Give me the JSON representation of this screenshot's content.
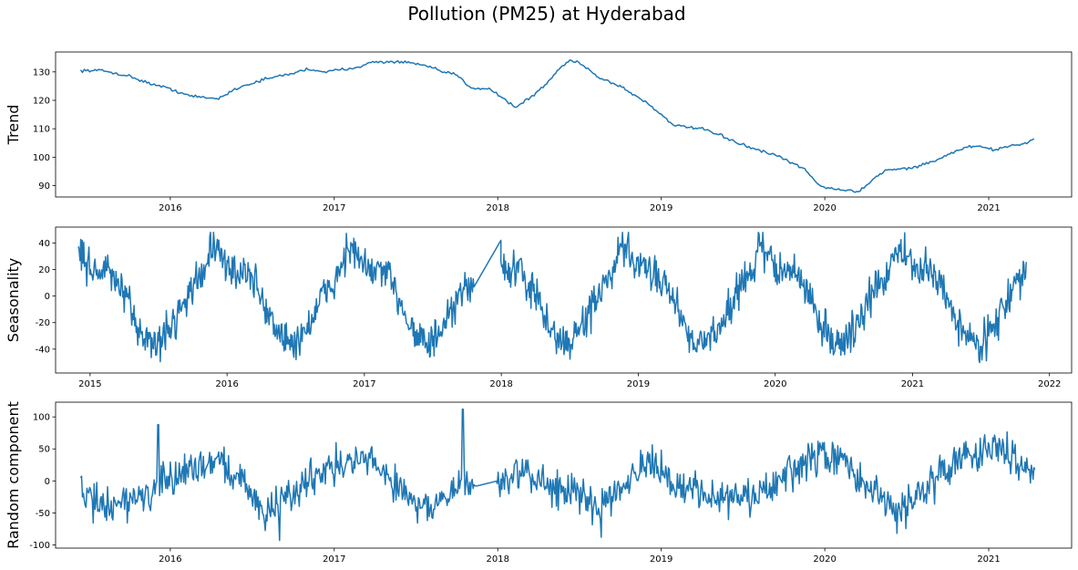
{
  "figure": {
    "title": "Pollution (PM25) at Hyderabad"
  },
  "colors": {
    "line": "#1f77b4",
    "axis": "#000000",
    "background": "#ffffff"
  },
  "chart_data": [
    {
      "type": "line",
      "ylabel": "Trend",
      "xlabel": "",
      "x_ticks": [
        "2016",
        "2017",
        "2018",
        "2019",
        "2020",
        "2021"
      ],
      "y_ticks": [
        90,
        100,
        110,
        120,
        130
      ],
      "xlim": [
        "2015-04-20",
        "2021-07-05"
      ],
      "ylim": [
        86,
        137
      ],
      "grid": false,
      "series": [
        {
          "points": [
            [
              "2015-06-15",
              130.5
            ],
            [
              "2015-08-01",
              130.5
            ],
            [
              "2015-10-01",
              128.5
            ],
            [
              "2015-11-15",
              126.0
            ],
            [
              "2016-01-01",
              124.0
            ],
            [
              "2016-02-15",
              121.5
            ],
            [
              "2016-04-15",
              120.5
            ],
            [
              "2016-06-01",
              124.5
            ],
            [
              "2016-08-01",
              127.5
            ],
            [
              "2016-10-01",
              129.5
            ],
            [
              "2016-11-01",
              131.0
            ],
            [
              "2016-12-15",
              130.0
            ],
            [
              "2017-02-15",
              131.5
            ],
            [
              "2017-04-01",
              133.5
            ],
            [
              "2017-06-01",
              133.5
            ],
            [
              "2017-07-15",
              132.5
            ],
            [
              "2017-09-01",
              130.0
            ],
            [
              "2017-10-01",
              129.0
            ],
            [
              "2017-11-01",
              124.5
            ],
            [
              "2017-12-15",
              124.0
            ],
            [
              "2018-01-15",
              120.5
            ],
            [
              "2018-02-10",
              117.5
            ],
            [
              "2018-03-15",
              121.0
            ],
            [
              "2018-04-15",
              125.0
            ],
            [
              "2018-05-15",
              130.5
            ],
            [
              "2018-06-10",
              134.0
            ],
            [
              "2018-07-01",
              133.5
            ],
            [
              "2018-08-15",
              128.0
            ],
            [
              "2018-10-01",
              125.0
            ],
            [
              "2018-12-01",
              119.0
            ],
            [
              "2019-02-01",
              111.0
            ],
            [
              "2019-04-01",
              110.0
            ],
            [
              "2019-05-15",
              107.5
            ],
            [
              "2019-07-15",
              103.5
            ],
            [
              "2019-09-15",
              100.5
            ],
            [
              "2019-11-15",
              96.0
            ],
            [
              "2019-12-20",
              90.0
            ],
            [
              "2020-02-01",
              88.5
            ],
            [
              "2020-03-20",
              88.0
            ],
            [
              "2020-04-15",
              92.0
            ],
            [
              "2020-05-15",
              95.5
            ],
            [
              "2020-07-01",
              96.0
            ],
            [
              "2020-08-01",
              97.0
            ],
            [
              "2020-09-15",
              99.5
            ],
            [
              "2020-11-01",
              103.0
            ],
            [
              "2020-12-01",
              104.0
            ],
            [
              "2021-01-15",
              102.5
            ],
            [
              "2021-02-15",
              104.0
            ],
            [
              "2021-03-15",
              104.5
            ],
            [
              "2021-04-15",
              106.5
            ]
          ]
        }
      ]
    },
    {
      "type": "line",
      "ylabel": "Seasonality",
      "xlabel": "",
      "x_ticks": [
        "2015",
        "2016",
        "2017",
        "2018",
        "2019",
        "2020",
        "2021",
        "2022"
      ],
      "y_ticks": [
        -40,
        -20,
        0,
        20,
        40
      ],
      "xlim": [
        "2014-10-01",
        "2022-03-01"
      ],
      "ylim": [
        -58,
        52
      ],
      "grid": false,
      "series": [
        {
          "seasonal_profile": [
            [
              0,
              18
            ],
            [
              0.04,
              20
            ],
            [
              0.08,
              14
            ],
            [
              0.12,
              10
            ],
            [
              0.16,
              2
            ],
            [
              0.2,
              -8
            ],
            [
              0.25,
              -20
            ],
            [
              0.3,
              -28
            ],
            [
              0.35,
              -33
            ],
            [
              0.4,
              -38
            ],
            [
              0.45,
              -30
            ],
            [
              0.5,
              -25
            ],
            [
              0.55,
              -15
            ],
            [
              0.6,
              -5
            ],
            [
              0.65,
              5
            ],
            [
              0.7,
              10
            ],
            [
              0.75,
              20
            ],
            [
              0.8,
              38
            ],
            [
              0.85,
              32
            ],
            [
              0.9,
              24
            ],
            [
              0.95,
              20
            ],
            [
              1.0,
              18
            ]
          ],
          "start": "2014-12-01",
          "end": "2021-11-01",
          "gap": [
            "2017-10-20",
            "2017-12-31"
          ]
        }
      ]
    },
    {
      "type": "line",
      "ylabel": "Random component",
      "xlabel": "",
      "x_ticks": [
        "2016",
        "2017",
        "2018",
        "2019",
        "2020",
        "2021"
      ],
      "y_ticks": [
        -100,
        -50,
        0,
        50,
        100
      ],
      "xlim": [
        "2015-04-20",
        "2021-07-05"
      ],
      "ylim": [
        -105,
        123
      ],
      "grid": false,
      "series": [
        {
          "baseline": [
            [
              "2015-06-15",
              -15
            ],
            [
              "2015-08-01",
              -40
            ],
            [
              "2015-10-01",
              -30
            ],
            [
              "2015-12-01",
              -15
            ],
            [
              "2016-02-01",
              15
            ],
            [
              "2016-04-15",
              35
            ],
            [
              "2016-06-15",
              -5
            ],
            [
              "2016-08-01",
              -50
            ],
            [
              "2016-10-01",
              -20
            ],
            [
              "2016-12-01",
              20
            ],
            [
              "2017-02-15",
              30
            ],
            [
              "2017-04-01",
              30
            ],
            [
              "2017-06-01",
              -15
            ],
            [
              "2017-08-01",
              -45
            ],
            [
              "2017-10-20",
              -5
            ],
            [
              "2017-11-15",
              -8
            ],
            [
              "2017-12-31",
              0
            ],
            [
              "2018-02-15",
              10
            ],
            [
              "2018-04-15",
              0
            ],
            [
              "2018-06-15",
              -20
            ],
            [
              "2018-08-15",
              -40
            ],
            [
              "2018-10-15",
              5
            ],
            [
              "2018-12-01",
              25
            ],
            [
              "2019-02-01",
              -5
            ],
            [
              "2019-04-15",
              -20
            ],
            [
              "2019-06-15",
              -30
            ],
            [
              "2019-08-15",
              -20
            ],
            [
              "2019-10-15",
              10
            ],
            [
              "2019-12-15",
              40
            ],
            [
              "2020-02-15",
              30
            ],
            [
              "2020-04-15",
              -20
            ],
            [
              "2020-06-15",
              -45
            ],
            [
              "2020-08-15",
              -10
            ],
            [
              "2020-10-15",
              30
            ],
            [
              "2020-12-15",
              50
            ],
            [
              "2021-02-15",
              45
            ],
            [
              "2021-04-15",
              15
            ]
          ],
          "spikes": [
            [
              "2015-12-05",
              88
            ],
            [
              "2017-10-15",
              112
            ],
            [
              "2018-08-20",
              -88
            ],
            [
              "2016-09-01",
              -93
            ],
            [
              "2020-06-10",
              -82
            ]
          ]
        }
      ]
    }
  ]
}
